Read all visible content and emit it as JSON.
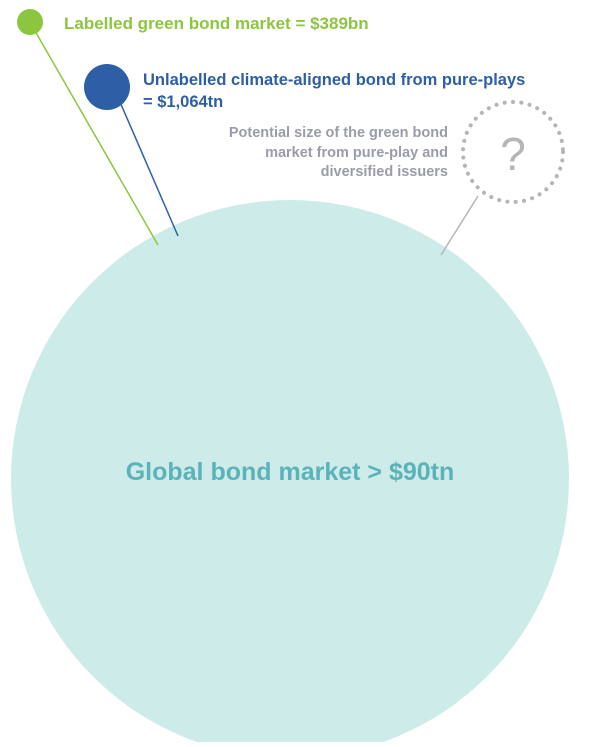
{
  "colors": {
    "green": "#8CC63F",
    "blue": "#2E5FA6",
    "grey_text": "#9A9CA8",
    "grey_dots": "#B5B5B5",
    "teal_fill": "#CDEBE8",
    "teal_text": "#5BB3BA"
  },
  "labelled": {
    "text": "Labelled green bond market = $389bn"
  },
  "unlabelled": {
    "line1": "Unlabelled climate-aligned bond from pure-plays",
    "line2": "= $1,064tn"
  },
  "potential": {
    "line1": "Potential size of the green bond",
    "line2": "market from pure-play and",
    "line3": "diversified issuers",
    "symbol": "?"
  },
  "global": {
    "text": "Global bond market > $90tn"
  }
}
